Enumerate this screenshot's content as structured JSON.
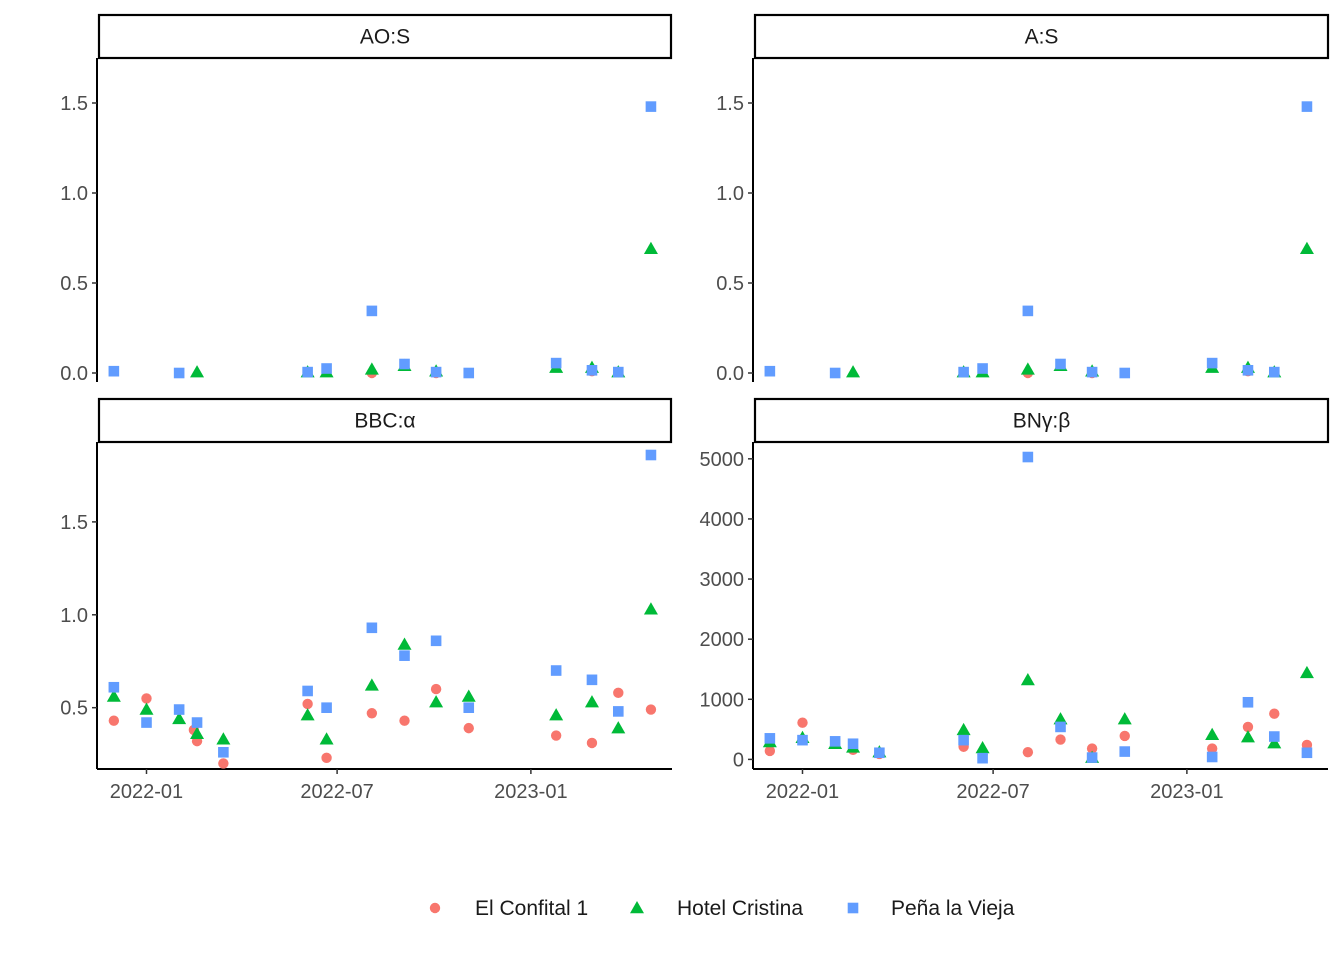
{
  "legend": {
    "items": [
      {
        "name": "El Confital 1",
        "color": "#F8766D",
        "shape": "circle"
      },
      {
        "name": "Hotel Cristina",
        "color": "#00BA38",
        "shape": "triangle"
      },
      {
        "name": "Peña la Vieja",
        "color": "#619CFF",
        "shape": "square"
      }
    ]
  },
  "chart_data": {
    "type": "scatter",
    "legend_position": "bottom",
    "grid": false,
    "x_ticks": [
      "2022-01-01",
      "2022-07-01",
      "2023-01-01"
    ],
    "x_tick_labels": [
      "2022-01",
      "2022-07",
      "2023-01"
    ],
    "x_range": [
      "2021-11-15",
      "2023-05-15"
    ],
    "series_names": [
      "El Confital 1",
      "Hotel Cristina",
      "Peña la Vieja"
    ],
    "panels": [
      {
        "label": "AO:S",
        "ylim": [
          -0.05,
          1.75
        ],
        "yticks": [
          0.0,
          0.5,
          1.0,
          1.5
        ],
        "ytick_labels": [
          "0.0",
          "0.5",
          "1.0",
          "1.5"
        ],
        "x_axis_shown": false,
        "series": [
          {
            "name": "El Confital 1",
            "points": [
              [
                "2022-08-03",
                0.0
              ],
              [
                "2022-10-03",
                0.0
              ],
              [
                "2023-02-28",
                0.01
              ]
            ]
          },
          {
            "name": "Hotel Cristina",
            "points": [
              [
                "2022-02-18",
                0.005
              ],
              [
                "2022-06-03",
                0.005
              ],
              [
                "2022-06-21",
                0.005
              ],
              [
                "2022-08-03",
                0.02
              ],
              [
                "2022-09-03",
                0.04
              ],
              [
                "2022-10-03",
                0.01
              ],
              [
                "2023-01-25",
                0.03
              ],
              [
                "2023-02-28",
                0.03
              ],
              [
                "2023-03-25",
                0.005
              ],
              [
                "2023-04-25",
                0.69
              ]
            ]
          },
          {
            "name": "Peña la Vieja",
            "points": [
              [
                "2021-12-01",
                0.01
              ],
              [
                "2022-02-01",
                0.0
              ],
              [
                "2022-06-03",
                0.005
              ],
              [
                "2022-06-21",
                0.025
              ],
              [
                "2022-08-03",
                0.345
              ],
              [
                "2022-09-03",
                0.05
              ],
              [
                "2022-10-03",
                0.005
              ],
              [
                "2022-11-03",
                0.0
              ],
              [
                "2023-01-25",
                0.055
              ],
              [
                "2023-02-28",
                0.015
              ],
              [
                "2023-03-25",
                0.005
              ],
              [
                "2023-04-25",
                1.48
              ]
            ]
          }
        ]
      },
      {
        "label": "A:S",
        "ylim": [
          -0.05,
          1.75
        ],
        "yticks": [
          0.0,
          0.5,
          1.0,
          1.5
        ],
        "ytick_labels": [
          "0.0",
          "0.5",
          "1.0",
          "1.5"
        ],
        "x_axis_shown": false,
        "series": [
          {
            "name": "El Confital 1",
            "points": [
              [
                "2022-08-03",
                0.0
              ],
              [
                "2022-10-03",
                0.0
              ],
              [
                "2023-02-28",
                0.01
              ]
            ]
          },
          {
            "name": "Hotel Cristina",
            "points": [
              [
                "2022-02-18",
                0.005
              ],
              [
                "2022-06-03",
                0.005
              ],
              [
                "2022-06-21",
                0.005
              ],
              [
                "2022-08-03",
                0.02
              ],
              [
                "2022-09-03",
                0.04
              ],
              [
                "2022-10-03",
                0.01
              ],
              [
                "2023-01-25",
                0.03
              ],
              [
                "2023-02-28",
                0.03
              ],
              [
                "2023-03-25",
                0.005
              ],
              [
                "2023-04-25",
                0.69
              ]
            ]
          },
          {
            "name": "Peña la Vieja",
            "points": [
              [
                "2021-12-01",
                0.01
              ],
              [
                "2022-02-01",
                0.0
              ],
              [
                "2022-06-03",
                0.005
              ],
              [
                "2022-06-21",
                0.025
              ],
              [
                "2022-08-03",
                0.345
              ],
              [
                "2022-09-03",
                0.05
              ],
              [
                "2022-10-03",
                0.005
              ],
              [
                "2022-11-03",
                0.0
              ],
              [
                "2023-01-25",
                0.055
              ],
              [
                "2023-02-28",
                0.015
              ],
              [
                "2023-03-25",
                0.005
              ],
              [
                "2023-04-25",
                1.48
              ]
            ]
          }
        ]
      },
      {
        "label": "BBC:α",
        "ylim": [
          0.17,
          1.93
        ],
        "yticks": [
          0.5,
          1.0,
          1.5
        ],
        "ytick_labels": [
          "0.5",
          "1.0",
          "1.5"
        ],
        "x_axis_shown": true,
        "series": [
          {
            "name": "El Confital 1",
            "points": [
              [
                "2021-12-01",
                0.43
              ],
              [
                "2022-01-01",
                0.55
              ],
              [
                "2022-02-15",
                0.38
              ],
              [
                "2022-02-18",
                0.32
              ],
              [
                "2022-03-15",
                0.2
              ],
              [
                "2022-06-03",
                0.52
              ],
              [
                "2022-06-21",
                0.23
              ],
              [
                "2022-08-03",
                0.47
              ],
              [
                "2022-09-03",
                0.43
              ],
              [
                "2022-10-03",
                0.6
              ],
              [
                "2022-11-03",
                0.39
              ],
              [
                "2023-01-25",
                0.35
              ],
              [
                "2023-02-28",
                0.31
              ],
              [
                "2023-03-25",
                0.58
              ],
              [
                "2023-04-25",
                0.49
              ]
            ]
          },
          {
            "name": "Hotel Cristina",
            "points": [
              [
                "2021-12-01",
                0.56
              ],
              [
                "2022-01-01",
                0.49
              ],
              [
                "2022-02-01",
                0.44
              ],
              [
                "2022-02-18",
                0.36
              ],
              [
                "2022-03-15",
                0.33
              ],
              [
                "2022-06-03",
                0.46
              ],
              [
                "2022-06-21",
                0.33
              ],
              [
                "2022-08-03",
                0.62
              ],
              [
                "2022-09-03",
                0.84
              ],
              [
                "2022-10-03",
                0.53
              ],
              [
                "2022-11-03",
                0.56
              ],
              [
                "2023-01-25",
                0.46
              ],
              [
                "2023-02-28",
                0.53
              ],
              [
                "2023-03-25",
                0.39
              ],
              [
                "2023-04-25",
                1.03
              ]
            ]
          },
          {
            "name": "Peña la Vieja",
            "points": [
              [
                "2021-12-01",
                0.61
              ],
              [
                "2022-01-01",
                0.42
              ],
              [
                "2022-02-01",
                0.49
              ],
              [
                "2022-02-18",
                0.42
              ],
              [
                "2022-03-15",
                0.26
              ],
              [
                "2022-06-03",
                0.59
              ],
              [
                "2022-06-21",
                0.5
              ],
              [
                "2022-08-03",
                0.93
              ],
              [
                "2022-09-03",
                0.78
              ],
              [
                "2022-10-03",
                0.86
              ],
              [
                "2022-11-03",
                0.5
              ],
              [
                "2023-01-25",
                0.7
              ],
              [
                "2023-02-28",
                0.65
              ],
              [
                "2023-03-25",
                0.48
              ],
              [
                "2023-04-25",
                1.86
              ]
            ]
          }
        ]
      },
      {
        "label": "BNγ:β",
        "ylim": [
          -160,
          5280
        ],
        "yticks": [
          0,
          1000,
          2000,
          3000,
          4000,
          5000
        ],
        "ytick_labels": [
          "0",
          "1000",
          "2000",
          "3000",
          "4000",
          "5000"
        ],
        "x_axis_shown": true,
        "series": [
          {
            "name": "El Confital 1",
            "points": [
              [
                "2021-12-01",
                140
              ],
              [
                "2022-01-01",
                610
              ],
              [
                "2022-02-18",
                160
              ],
              [
                "2022-03-15",
                90
              ],
              [
                "2022-06-03",
                210
              ],
              [
                "2022-06-21",
                80
              ],
              [
                "2022-08-03",
                120
              ],
              [
                "2022-09-03",
                330
              ],
              [
                "2022-10-03",
                180
              ],
              [
                "2022-11-03",
                390
              ],
              [
                "2023-01-25",
                180
              ],
              [
                "2023-02-28",
                540
              ],
              [
                "2023-03-25",
                760
              ],
              [
                "2023-04-25",
                240
              ]
            ]
          },
          {
            "name": "Hotel Cristina",
            "points": [
              [
                "2021-12-01",
                290
              ],
              [
                "2022-01-01",
                360
              ],
              [
                "2022-02-01",
                260
              ],
              [
                "2022-02-18",
                200
              ],
              [
                "2022-03-15",
                120
              ],
              [
                "2022-06-03",
                490
              ],
              [
                "2022-06-21",
                190
              ],
              [
                "2022-08-03",
                1320
              ],
              [
                "2022-09-03",
                670
              ],
              [
                "2022-10-03",
                30
              ],
              [
                "2022-11-03",
                670
              ],
              [
                "2023-01-25",
                410
              ],
              [
                "2023-02-28",
                370
              ],
              [
                "2023-03-25",
                270
              ],
              [
                "2023-04-25",
                1440
              ]
            ]
          },
          {
            "name": "Peña la Vieja",
            "points": [
              [
                "2021-12-01",
                350
              ],
              [
                "2022-01-01",
                320
              ],
              [
                "2022-02-01",
                300
              ],
              [
                "2022-02-18",
                260
              ],
              [
                "2022-03-15",
                110
              ],
              [
                "2022-06-03",
                320
              ],
              [
                "2022-06-21",
                20
              ],
              [
                "2022-08-03",
                5030
              ],
              [
                "2022-09-03",
                540
              ],
              [
                "2022-10-03",
                30
              ],
              [
                "2022-11-03",
                130
              ],
              [
                "2023-01-25",
                40
              ],
              [
                "2023-02-28",
                950
              ],
              [
                "2023-03-25",
                380
              ],
              [
                "2023-04-25",
                110
              ]
            ]
          }
        ]
      }
    ]
  }
}
